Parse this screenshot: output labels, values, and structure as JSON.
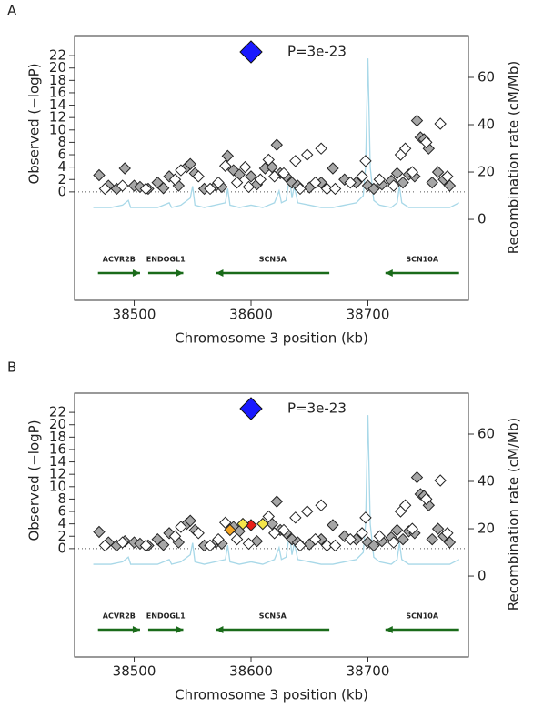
{
  "chart_data": [
    {
      "type": "scatter",
      "panel": "A",
      "xlabel": "Chromosome 3 position (kb)",
      "ylabel": "Observed (−logP)",
      "y2label": "Recombination rate (cM/Mb)",
      "xlim": [
        38449,
        38786
      ],
      "xticks": [
        38500,
        38600,
        38700
      ],
      "ylim": [
        -17.5,
        25.1
      ],
      "yticks": [
        0,
        2,
        4,
        6,
        8,
        10,
        12,
        14,
        16,
        18,
        20,
        22
      ],
      "y2lim": [
        -34.2,
        77.3
      ],
      "y2ticks": [
        0,
        20,
        40,
        60
      ],
      "top_hit": {
        "x": 38600,
        "y": 22.6,
        "label": "P=3e-23",
        "color": "#1a1aff"
      },
      "series": [
        {
          "color": "#a6a6a6",
          "x": [
            38470,
            38478,
            38485,
            38492,
            38500,
            38505,
            38512,
            38520,
            38525,
            38530,
            38538,
            38545,
            38548,
            38552,
            38560,
            38570,
            38575,
            38580,
            38585,
            38590,
            38600,
            38605,
            38612,
            38618,
            38622,
            38625,
            38630,
            38635,
            38640,
            38650,
            38660,
            38670,
            38680,
            38690,
            38700,
            38705,
            38712,
            38720,
            38725,
            38730,
            38735,
            38740,
            38742,
            38745,
            38748,
            38752,
            38755,
            38760,
            38765,
            38770
          ],
          "values": [
            2.7,
            1,
            0.5,
            3.8,
            1,
            0.8,
            0.5,
            1.5,
            0.6,
            2.5,
            1,
            4,
            4.5,
            3,
            0.5,
            1,
            0.8,
            5.8,
            3.5,
            2.8,
            2.5,
            1.2,
            3.8,
            4,
            7.6,
            3,
            2.5,
            1.5,
            1,
            0.7,
            1.5,
            3.8,
            2,
            1.5,
            1,
            0.5,
            1.2,
            1.8,
            3,
            1.5,
            2.8,
            2.5,
            11.5,
            8.8,
            8.5,
            7,
            1.5,
            3.2,
            2,
            1
          ]
        },
        {
          "color": "#ffffff",
          "x": [
            38475,
            38490,
            38510,
            38535,
            38540,
            38555,
            38565,
            38572,
            38578,
            38588,
            38595,
            38598,
            38608,
            38615,
            38620,
            38628,
            38638,
            38642,
            38648,
            38655,
            38660,
            38665,
            38672,
            38685,
            38695,
            38698,
            38710,
            38722,
            38728,
            38732,
            38738,
            38750,
            38762,
            38768
          ],
          "values": [
            0.5,
            1,
            0.5,
            2,
            3.5,
            2.5,
            0.5,
            1.5,
            4.2,
            1.5,
            4,
            0.8,
            2,
            5.2,
            2.5,
            3,
            5,
            0.5,
            6,
            1.5,
            7,
            0.5,
            0.5,
            1.5,
            2.5,
            5,
            2,
            1,
            6,
            7,
            3.2,
            8,
            11,
            2.5
          ]
        },
        {
          "axis": "y2",
          "color": "#a8d8e8",
          "x": [
            38465,
            38480,
            38490,
            38495,
            38497,
            38500,
            38520,
            38530,
            38532,
            38540,
            38548,
            38550,
            38552,
            38560,
            38578,
            38580,
            38582,
            38590,
            38600,
            38610,
            38620,
            38624,
            38626,
            38630,
            38633,
            38635,
            38637,
            38640,
            38650,
            38660,
            38670,
            38680,
            38690,
            38696,
            38698,
            38700,
            38702,
            38705,
            38710,
            38720,
            38725,
            38727,
            38729,
            38735,
            38750,
            38770,
            38778
          ],
          "values": [
            5,
            5,
            6,
            8,
            5,
            5,
            5,
            7,
            5,
            6,
            9,
            14,
            6,
            5,
            7,
            13,
            6,
            5,
            6,
            5,
            7,
            12,
            7,
            8,
            18,
            9,
            14,
            7,
            6,
            5,
            5,
            6,
            7,
            10,
            22,
            68,
            22,
            8,
            6,
            5,
            7,
            14,
            7,
            5,
            5,
            5,
            7
          ]
        }
      ],
      "genes": [
        {
          "name": "ACVR2B",
          "start": 38469,
          "end": 38505,
          "strand": "+"
        },
        {
          "name": "ENDOGL1",
          "start": 38512,
          "end": 38542,
          "strand": "+"
        },
        {
          "name": "SCN5A",
          "start": 38570,
          "end": 38667,
          "strand": "-"
        },
        {
          "name": "SCN10A",
          "start": 38715,
          "end": 38778,
          "strand": "-"
        }
      ]
    },
    {
      "type": "scatter",
      "panel": "B",
      "xlabel": "Chromosome 3 position (kb)",
      "ylabel": "Observed (−logP)",
      "y2label": "Recombination rate (cM/Mb)",
      "xlim": [
        38449,
        38786
      ],
      "xticks": [
        38500,
        38600,
        38700
      ],
      "ylim": [
        -17.5,
        25.1
      ],
      "yticks": [
        0,
        2,
        4,
        6,
        8,
        10,
        12,
        14,
        16,
        18,
        20,
        22
      ],
      "y2lim": [
        -34.2,
        77.3
      ],
      "y2ticks": [
        0,
        20,
        40,
        60
      ],
      "top_hit": {
        "x": 38600,
        "y": 22.6,
        "label": "P=3e-23",
        "color": "#1a1aff"
      },
      "series": [
        {
          "color": "#a6a6a6",
          "x": [
            38470,
            38478,
            38485,
            38492,
            38500,
            38505,
            38512,
            38520,
            38525,
            38530,
            38538,
            38545,
            38548,
            38552,
            38560,
            38570,
            38575,
            38585,
            38590,
            38605,
            38618,
            38622,
            38625,
            38630,
            38635,
            38640,
            38650,
            38660,
            38670,
            38680,
            38690,
            38700,
            38705,
            38712,
            38720,
            38725,
            38730,
            38735,
            38740,
            38742,
            38745,
            38748,
            38752,
            38755,
            38760,
            38765,
            38770
          ],
          "values": [
            2.7,
            1,
            0.5,
            1.2,
            1,
            0.8,
            0.5,
            1.5,
            0.6,
            2.5,
            1,
            4,
            4.5,
            3,
            0.5,
            1,
            0.8,
            3.5,
            2.8,
            1.2,
            4,
            7.6,
            3,
            2.5,
            1.5,
            1,
            0.7,
            1.5,
            3.8,
            2,
            1.5,
            1,
            0.5,
            1.2,
            1.8,
            3,
            1.5,
            2.8,
            2.5,
            11.5,
            8.8,
            8.5,
            7,
            1.5,
            3.2,
            2,
            1
          ]
        },
        {
          "color": "#ffffff",
          "x": [
            38475,
            38490,
            38510,
            38535,
            38540,
            38555,
            38565,
            38572,
            38578,
            38588,
            38598,
            38615,
            38620,
            38628,
            38638,
            38642,
            38648,
            38655,
            38660,
            38665,
            38672,
            38685,
            38695,
            38698,
            38710,
            38722,
            38728,
            38732,
            38738,
            38750,
            38762,
            38768
          ],
          "values": [
            0.5,
            1,
            0.5,
            2,
            3.5,
            2.5,
            0.5,
            1.5,
            4.2,
            1.5,
            0.8,
            5.2,
            2.5,
            3,
            5,
            0.5,
            6,
            1.5,
            7,
            0.5,
            0.5,
            1.5,
            2.5,
            5,
            2,
            1,
            6,
            7,
            3.2,
            8,
            11,
            2.5
          ]
        },
        {
          "color": "#f5a623",
          "x": [
            38582
          ],
          "values": [
            3
          ]
        },
        {
          "color": "#e8201a",
          "x": [
            38600
          ],
          "values": [
            3.8
          ]
        },
        {
          "color": "#f5e64a",
          "x": [
            38593,
            38610
          ],
          "values": [
            4,
            4
          ]
        },
        {
          "axis": "y2",
          "color": "#a8d8e8",
          "x": [
            38465,
            38480,
            38490,
            38495,
            38497,
            38500,
            38520,
            38530,
            38532,
            38540,
            38548,
            38550,
            38552,
            38560,
            38578,
            38580,
            38582,
            38590,
            38600,
            38610,
            38620,
            38624,
            38626,
            38630,
            38633,
            38635,
            38637,
            38640,
            38650,
            38660,
            38670,
            38680,
            38690,
            38696,
            38698,
            38700,
            38702,
            38705,
            38710,
            38720,
            38725,
            38727,
            38729,
            38735,
            38750,
            38770,
            38778
          ],
          "values": [
            5,
            5,
            6,
            8,
            5,
            5,
            5,
            7,
            5,
            6,
            9,
            14,
            6,
            5,
            7,
            13,
            6,
            5,
            6,
            5,
            7,
            12,
            7,
            8,
            18,
            9,
            14,
            7,
            6,
            5,
            5,
            6,
            7,
            10,
            22,
            68,
            22,
            8,
            6,
            5,
            7,
            14,
            7,
            5,
            5,
            5,
            7
          ]
        }
      ],
      "genes": [
        {
          "name": "ACVR2B",
          "start": 38469,
          "end": 38505,
          "strand": "+"
        },
        {
          "name": "ENDOGL1",
          "start": 38512,
          "end": 38542,
          "strand": "+"
        },
        {
          "name": "SCN5A",
          "start": 38570,
          "end": 38667,
          "strand": "-"
        },
        {
          "name": "SCN10A",
          "start": 38715,
          "end": 38778,
          "strand": "-"
        }
      ]
    }
  ]
}
